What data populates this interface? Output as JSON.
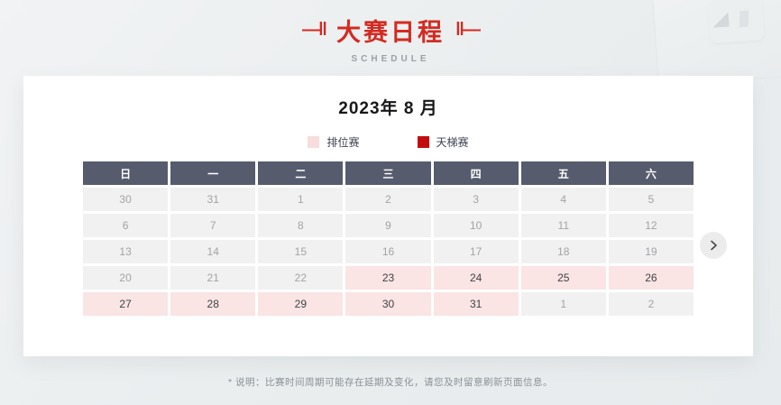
{
  "page": {
    "title": "大赛日程",
    "title_decor_left": "—‖",
    "title_decor_right": "‖—",
    "subtitle": "SCHEDULE",
    "footnote": "* 说明：比赛时间周期可能存在延期及变化，请您及时留意刷新页面信息。"
  },
  "calendar": {
    "month_title": "2023年 8 月",
    "legend": [
      {
        "label": "排位赛",
        "color": "#f7dddd"
      },
      {
        "label": "天梯赛",
        "color": "#c30d0d"
      }
    ],
    "weekdays": [
      "日",
      "一",
      "二",
      "三",
      "四",
      "五",
      "六"
    ],
    "weeks": [
      [
        {
          "day": "30",
          "type": "plain"
        },
        {
          "day": "31",
          "type": "plain"
        },
        {
          "day": "1",
          "type": "plain"
        },
        {
          "day": "2",
          "type": "plain"
        },
        {
          "day": "3",
          "type": "plain"
        },
        {
          "day": "4",
          "type": "plain"
        },
        {
          "day": "5",
          "type": "plain"
        }
      ],
      [
        {
          "day": "6",
          "type": "plain"
        },
        {
          "day": "7",
          "type": "plain"
        },
        {
          "day": "8",
          "type": "plain"
        },
        {
          "day": "9",
          "type": "plain"
        },
        {
          "day": "10",
          "type": "plain"
        },
        {
          "day": "11",
          "type": "plain"
        },
        {
          "day": "12",
          "type": "plain"
        }
      ],
      [
        {
          "day": "13",
          "type": "plain"
        },
        {
          "day": "14",
          "type": "plain"
        },
        {
          "day": "15",
          "type": "plain"
        },
        {
          "day": "16",
          "type": "plain"
        },
        {
          "day": "17",
          "type": "plain"
        },
        {
          "day": "18",
          "type": "plain"
        },
        {
          "day": "19",
          "type": "plain"
        }
      ],
      [
        {
          "day": "20",
          "type": "plain"
        },
        {
          "day": "21",
          "type": "plain"
        },
        {
          "day": "22",
          "type": "plain"
        },
        {
          "day": "23",
          "type": "qualifier"
        },
        {
          "day": "24",
          "type": "qualifier"
        },
        {
          "day": "25",
          "type": "qualifier"
        },
        {
          "day": "26",
          "type": "qualifier"
        }
      ],
      [
        {
          "day": "27",
          "type": "qualifier"
        },
        {
          "day": "28",
          "type": "qualifier"
        },
        {
          "day": "29",
          "type": "qualifier"
        },
        {
          "day": "30",
          "type": "qualifier"
        },
        {
          "day": "31",
          "type": "qualifier"
        },
        {
          "day": "1",
          "type": "plain"
        },
        {
          "day": "2",
          "type": "plain"
        }
      ]
    ]
  },
  "colors": {
    "title_red": "#d42a21",
    "weekday_header_bg": "#565c6e",
    "plain_cell_bg": "#f1f1f2",
    "qualifier_cell_bg": "#fae4e4"
  }
}
